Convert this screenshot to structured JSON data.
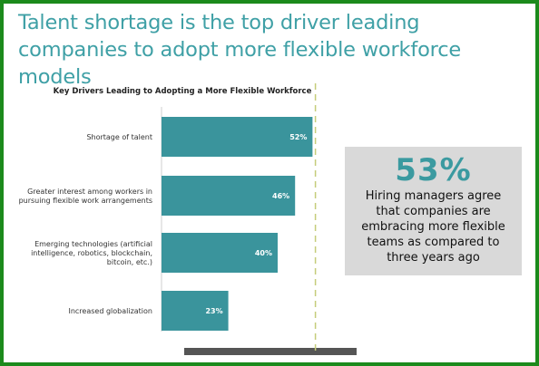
{
  "slide": {
    "title": "Talent shortage is the top driver leading companies to adopt more flexible workforce models"
  },
  "callout": {
    "stat": "53%",
    "text": "Hiring managers agree that companies are embracing more flexible teams as compared to three years ago"
  },
  "colors": {
    "bar": "#3a949c",
    "frame": "#1c8a1c",
    "title": "#3fa0a6",
    "callout_bg": "#d9d9d9",
    "reference_line": "#c5cc7a"
  },
  "chart_data": {
    "type": "bar",
    "orientation": "horizontal",
    "title": "Key Drivers Leading to Adopting a More Flexible Workforce",
    "categories": [
      [
        "Shortage of talent"
      ],
      [
        "Greater interest among workers in",
        "pursuing flexible work arrangements"
      ],
      [
        "Emerging technologies (artificial",
        "intelligence, robotics, blockchain,",
        "bitcoin, etc.)"
      ],
      [
        "Increased globalization"
      ]
    ],
    "values": [
      52,
      46,
      40,
      23
    ],
    "data_labels": [
      "52%",
      "46%",
      "40%",
      "23%"
    ],
    "xlim": [
      0,
      60
    ],
    "reference_line": 53,
    "grid": false,
    "legend": "none"
  }
}
